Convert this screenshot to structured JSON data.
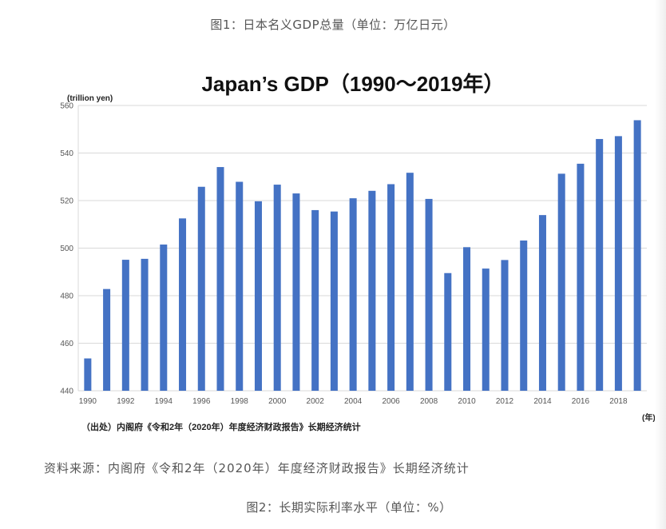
{
  "captions": {
    "top": "图1：日本名义GDP总量（单位：万亿日元）",
    "source": "资料来源：内阁府《令和2年（2020年）年度经济财政报告》长期经济统计",
    "bottom": "图2：长期实际利率水平（单位：%）"
  },
  "chart_data": {
    "type": "bar",
    "title": "Japan’s GDP（1990～2019年）",
    "ylabel": "(trillion yen)",
    "xlabel": "(年)",
    "source_note": "（出处）内阁府《令和2年（2020年）年度经济财政报告》长期经济统计",
    "ylim": [
      440,
      560
    ],
    "yticks": [
      440,
      460,
      480,
      500,
      520,
      540,
      560
    ],
    "grid": true,
    "color": "#4472c4",
    "categories": [
      "1990",
      "1991",
      "1992",
      "1993",
      "1994",
      "1995",
      "1996",
      "1997",
      "1998",
      "1999",
      "2000",
      "2001",
      "2002",
      "2003",
      "2004",
      "2005",
      "2006",
      "2007",
      "2008",
      "2009",
      "2010",
      "2011",
      "2012",
      "2013",
      "2014",
      "2015",
      "2016",
      "2017",
      "2018",
      "2019"
    ],
    "xtick_labels": [
      "1990",
      "1992",
      "1994",
      "1996",
      "1998",
      "2000",
      "2002",
      "2004",
      "2006",
      "2008",
      "2010",
      "2012",
      "2014",
      "2016",
      "2018"
    ],
    "values": [
      453.6,
      482.8,
      495.1,
      495.5,
      501.5,
      512.5,
      525.8,
      534.1,
      527.9,
      519.7,
      526.7,
      523.0,
      515.99,
      515.4,
      520.97,
      524.1,
      526.9,
      531.7,
      520.7,
      489.5,
      500.4,
      491.4,
      495.0,
      503.2,
      513.9,
      531.3,
      535.5,
      545.9,
      547.1,
      553.8
    ]
  }
}
